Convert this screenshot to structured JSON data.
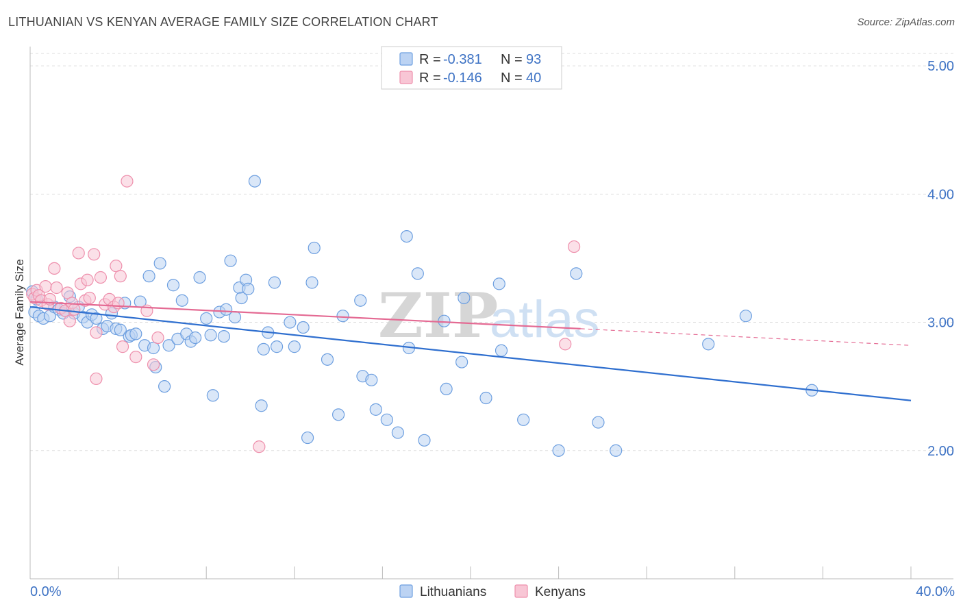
{
  "title": "LITHUANIAN VS KENYAN AVERAGE FAMILY SIZE CORRELATION CHART",
  "source": "Source: ZipAtlas.com",
  "watermark": {
    "zip": "ZIP",
    "atlas": "atlas"
  },
  "colors": {
    "lithuanians": "#6d9fe0",
    "lithuanians_fill": "#bcd3f3",
    "kenyans": "#ee8fac",
    "kenyans_fill": "#f8c6d5",
    "blue_line": "#2f6fcf",
    "pink_line": "#e46a93",
    "tick_text": "#3d72c4"
  },
  "legend": {
    "rows": [
      {
        "series": "Lithuanians",
        "r_label": "R =",
        "r_value": "-0.381",
        "n_label": "N =",
        "n_value": "93"
      },
      {
        "series": "Kenyans",
        "r_label": "R =",
        "r_value": "-0.146",
        "n_label": "N =",
        "n_value": "40"
      }
    ]
  },
  "chart_data": {
    "type": "scatter",
    "title": "LITHUANIAN VS KENYAN AVERAGE FAMILY SIZE CORRELATION CHART",
    "xlabel": "",
    "ylabel": "Average Family Size",
    "xlim": [
      0,
      40
    ],
    "ylim": [
      1.0,
      5.15
    ],
    "x_tick_labels": [
      "0.0%",
      "40.0%"
    ],
    "y_ticks": [
      2.0,
      3.0,
      4.0,
      5.0
    ],
    "y_tick_labels": [
      "2.00",
      "3.00",
      "4.00",
      "5.00"
    ],
    "grid": true,
    "legend_position": "top-center",
    "series": [
      {
        "name": "Lithuanians",
        "r": -0.381,
        "n": 93,
        "trend": {
          "x": [
            0,
            40
          ],
          "y": [
            3.12,
            2.39
          ]
        },
        "points": [
          [
            0.1,
            3.24
          ],
          [
            0.2,
            3.08
          ],
          [
            0.4,
            3.05
          ],
          [
            0.6,
            3.03
          ],
          [
            0.9,
            3.05
          ],
          [
            1.1,
            3.12
          ],
          [
            1.3,
            3.1
          ],
          [
            1.6,
            3.09
          ],
          [
            1.8,
            3.2
          ],
          [
            2.0,
            3.07
          ],
          [
            2.2,
            3.12
          ],
          [
            2.4,
            3.04
          ],
          [
            2.6,
            3.0
          ],
          [
            2.8,
            3.06
          ],
          [
            3.0,
            3.03
          ],
          [
            3.3,
            2.95
          ],
          [
            3.5,
            2.97
          ],
          [
            3.7,
            3.07
          ],
          [
            3.9,
            2.95
          ],
          [
            4.1,
            2.94
          ],
          [
            4.3,
            3.15
          ],
          [
            4.5,
            2.89
          ],
          [
            4.6,
            2.9
          ],
          [
            4.8,
            2.91
          ],
          [
            5.0,
            3.16
          ],
          [
            5.2,
            2.82
          ],
          [
            5.4,
            3.36
          ],
          [
            5.6,
            2.8
          ],
          [
            5.7,
            2.65
          ],
          [
            5.9,
            3.46
          ],
          [
            6.1,
            2.5
          ],
          [
            6.3,
            2.82
          ],
          [
            6.5,
            3.29
          ],
          [
            6.7,
            2.87
          ],
          [
            6.9,
            3.17
          ],
          [
            7.1,
            2.91
          ],
          [
            7.3,
            2.85
          ],
          [
            7.5,
            2.88
          ],
          [
            7.7,
            3.35
          ],
          [
            8.0,
            3.03
          ],
          [
            8.2,
            2.9
          ],
          [
            8.3,
            2.43
          ],
          [
            8.6,
            3.08
          ],
          [
            8.8,
            2.89
          ],
          [
            8.9,
            3.1
          ],
          [
            9.1,
            3.48
          ],
          [
            9.3,
            3.04
          ],
          [
            9.5,
            3.27
          ],
          [
            9.6,
            3.19
          ],
          [
            9.8,
            3.33
          ],
          [
            9.9,
            3.26
          ],
          [
            10.2,
            4.1
          ],
          [
            10.5,
            2.35
          ],
          [
            10.6,
            2.79
          ],
          [
            10.8,
            2.92
          ],
          [
            11.1,
            3.31
          ],
          [
            11.2,
            2.81
          ],
          [
            11.8,
            3.0
          ],
          [
            12.0,
            2.81
          ],
          [
            12.4,
            2.96
          ],
          [
            12.6,
            2.1
          ],
          [
            12.8,
            3.31
          ],
          [
            12.9,
            3.58
          ],
          [
            13.5,
            2.71
          ],
          [
            14.0,
            2.28
          ],
          [
            14.2,
            3.05
          ],
          [
            15.0,
            3.17
          ],
          [
            15.1,
            2.58
          ],
          [
            15.5,
            2.55
          ],
          [
            15.7,
            2.32
          ],
          [
            16.2,
            2.24
          ],
          [
            16.7,
            2.14
          ],
          [
            17.1,
            3.67
          ],
          [
            17.2,
            2.8
          ],
          [
            17.6,
            3.38
          ],
          [
            17.9,
            2.08
          ],
          [
            18.8,
            3.01
          ],
          [
            18.9,
            2.48
          ],
          [
            19.6,
            2.69
          ],
          [
            19.7,
            3.19
          ],
          [
            20.7,
            2.41
          ],
          [
            21.3,
            3.3
          ],
          [
            21.4,
            2.78
          ],
          [
            22.4,
            2.24
          ],
          [
            24.0,
            2.0
          ],
          [
            24.8,
            3.38
          ],
          [
            25.8,
            2.22
          ],
          [
            26.6,
            2.0
          ],
          [
            30.8,
            2.83
          ],
          [
            32.5,
            3.05
          ],
          [
            35.5,
            2.47
          ],
          [
            0.3,
            3.18
          ],
          [
            1.5,
            3.07
          ]
        ]
      },
      {
        "name": "Kenyans",
        "r": -0.146,
        "n": 40,
        "trend": {
          "x": [
            0,
            25
          ],
          "y": [
            3.16,
            2.95
          ]
        },
        "trend_extension": {
          "x": [
            25,
            40
          ],
          "y": [
            2.95,
            2.82
          ]
        },
        "points": [
          [
            0.1,
            3.22
          ],
          [
            0.2,
            3.19
          ],
          [
            0.3,
            3.25
          ],
          [
            0.4,
            3.21
          ],
          [
            0.5,
            3.17
          ],
          [
            0.7,
            3.28
          ],
          [
            0.8,
            3.14
          ],
          [
            0.9,
            3.18
          ],
          [
            1.1,
            3.42
          ],
          [
            1.2,
            3.27
          ],
          [
            1.4,
            3.11
          ],
          [
            1.6,
            3.09
          ],
          [
            1.7,
            3.23
          ],
          [
            1.8,
            3.01
          ],
          [
            1.9,
            3.15
          ],
          [
            2.0,
            3.1
          ],
          [
            2.2,
            3.54
          ],
          [
            2.3,
            3.3
          ],
          [
            2.5,
            3.17
          ],
          [
            2.6,
            3.33
          ],
          [
            2.7,
            3.19
          ],
          [
            2.9,
            3.53
          ],
          [
            3.0,
            2.92
          ],
          [
            3.2,
            3.35
          ],
          [
            3.4,
            3.14
          ],
          [
            3.6,
            3.18
          ],
          [
            3.8,
            3.12
          ],
          [
            3.9,
            3.44
          ],
          [
            4.0,
            3.15
          ],
          [
            4.1,
            3.36
          ],
          [
            3.0,
            2.56
          ],
          [
            4.2,
            2.81
          ],
          [
            4.4,
            4.1
          ],
          [
            4.8,
            2.73
          ],
          [
            5.3,
            3.09
          ],
          [
            5.6,
            2.67
          ],
          [
            5.8,
            2.88
          ],
          [
            10.4,
            2.03
          ],
          [
            24.3,
            2.83
          ],
          [
            24.7,
            3.59
          ]
        ]
      }
    ]
  },
  "bottom_legend": [
    "Lithuanians",
    "Kenyans"
  ]
}
